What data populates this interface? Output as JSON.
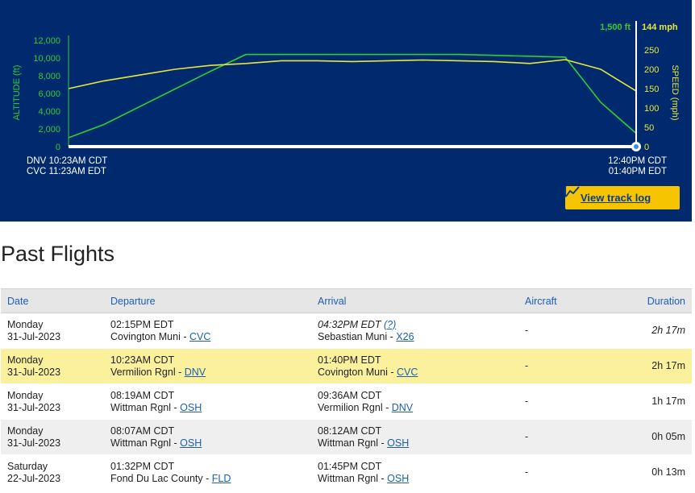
{
  "chart": {
    "left_axis_label": "ALTITUDE (ft)",
    "right_axis_label": "SPEED (mph)",
    "current_altitude": "1,500 ft",
    "current_speed": "144 mph",
    "altitude_ticks": [
      "12,000",
      "10,000",
      "8,000",
      "6,000",
      "4,000",
      "2,000",
      "0"
    ],
    "speed_ticks": [
      "250",
      "200",
      "150",
      "100",
      "50",
      "0"
    ],
    "start_time_local": "DNV 10:23AM CDT",
    "start_time_dest": "CVC 11:23AM EDT",
    "end_time_local": "12:40PM CDT",
    "end_time_dest": "01:40PM EDT",
    "track_log_label": "View track log",
    "colors": {
      "altitude": "#33cc33",
      "speed": "#e8e83a",
      "background": "#002a6d"
    }
  },
  "chart_data": {
    "type": "line",
    "x_range": [
      "10:23AM CDT",
      "12:40PM CDT"
    ],
    "series": [
      {
        "name": "ALTITUDE (ft)",
        "axis": "left",
        "ylim": [
          0,
          12000
        ],
        "values": [
          1000,
          2500,
          4500,
          6500,
          8500,
          10400,
          10400,
          10400,
          10400,
          10400,
          10400,
          10400,
          10300,
          10200,
          10100,
          5000,
          1500
        ]
      },
      {
        "name": "SPEED (mph)",
        "axis": "right",
        "ylim": [
          0,
          275
        ],
        "values": [
          150,
          170,
          185,
          200,
          210,
          215,
          222,
          222,
          220,
          222,
          224,
          222,
          220,
          215,
          225,
          200,
          144
        ]
      }
    ]
  },
  "past_flights": {
    "title": "Past Flights",
    "headers": {
      "date": "Date",
      "departure": "Departure",
      "arrival": "Arrival",
      "aircraft": "Aircraft",
      "duration": "Duration"
    },
    "rows": [
      {
        "day": "Monday",
        "date": "31-Jul-2023",
        "dep_time": "02:15PM EDT",
        "dep_airport": "Covington Muni - ",
        "dep_code": "CVC",
        "arr_time": "04:32PM EDT",
        "arr_q": "(?)",
        "arr_airport": "Sebastian Muni - ",
        "arr_code": "X26",
        "aircraft": "-",
        "duration": "2h 17m"
      },
      {
        "day": "Monday",
        "date": "31-Jul-2023",
        "dep_time": "10:23AM CDT",
        "dep_airport": "Vermilion Rgnl - ",
        "dep_code": "DNV",
        "arr_time": "01:40PM EDT",
        "arr_airport": "Covington Muni - ",
        "arr_code": "CVC",
        "aircraft": "-",
        "duration": "2h 17m"
      },
      {
        "day": "Monday",
        "date": "31-Jul-2023",
        "dep_time": "08:19AM CDT",
        "dep_airport": "Wittman Rgnl - ",
        "dep_code": "OSH",
        "arr_time": "09:36AM CDT",
        "arr_airport": "Vermilion Rgnl - ",
        "arr_code": "DNV",
        "aircraft": "-",
        "duration": "1h 17m"
      },
      {
        "day": "Monday",
        "date": "31-Jul-2023",
        "dep_time": "08:07AM CDT",
        "dep_airport": "Wittman Rgnl - ",
        "dep_code": "OSH",
        "arr_time": "08:12AM CDT",
        "arr_airport": "Wittman Rgnl - ",
        "arr_code": "OSH",
        "aircraft": "-",
        "duration": "0h 05m"
      },
      {
        "day": "Saturday",
        "date": "22-Jul-2023",
        "dep_time": "01:32PM CDT",
        "dep_airport": "Fond Du Lac County - ",
        "dep_code": "FLD",
        "arr_time": "01:45PM CDT",
        "arr_airport": "Wittman Rgnl - ",
        "arr_code": "OSH",
        "aircraft": "-",
        "duration": "0h 13m"
      }
    ]
  }
}
